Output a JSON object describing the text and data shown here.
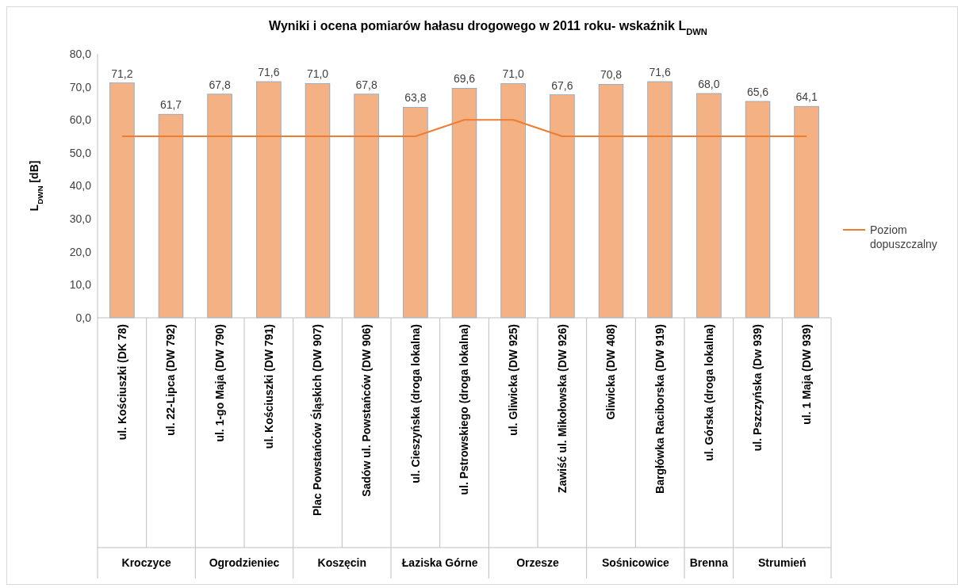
{
  "chart_data": {
    "type": "bar",
    "title": "Wyniki i ocena pomiarów hałasu drogowego w 2011 roku- wskaźnik L$_{DWN}$",
    "ylabel": "L$_{DWN}$ [dB]",
    "categories": [
      "ul. Kościuszki (DK 78)",
      "ul. 22-Lipca (DW 792)",
      "ul. 1-go Maja (DW 790)",
      "ul. Kościuszki (DW 791)",
      "Plac Powstańców Śląskich (DW 907)",
      "Sadów ul. Powstańców (DW 906)",
      "ul. Cieszyńska (droga lokalna)",
      "ul. Pstrowskiego (droga lokalna)",
      "ul. Gliwicka (DW 925)",
      "Zawiść ul. Mikołowska (DW 926)",
      "Gliwicka  (DW 408)",
      "Bargłówka Raciborska (DW 919)",
      "ul. Górska (droga lokalna)",
      "ul. Pszczyńska (Dw 939)",
      "ul. 1 Maja (DW 939)"
    ],
    "series": [
      {
        "color": "#f4b183",
        "values": [
          71.2,
          61.7,
          67.8,
          71.6,
          71.0,
          67.8,
          63.8,
          69.6,
          71.0,
          67.6,
          70.8,
          71.6,
          68.0,
          65.6,
          64.1
        ],
        "value_labels": [
          "71,2",
          "61,7",
          "67,8",
          "71,6",
          "71,0",
          "67,8",
          "63,8",
          "69,6",
          "71,0",
          "67,6",
          "70,8",
          "71,6",
          "68,0",
          "65,6",
          "64,1"
        ]
      },
      {
        "type": "line",
        "name": "Poziom dopuszczalny",
        "color": "#ed7d31",
        "values": [
          55,
          55,
          55,
          55,
          55,
          55,
          55,
          60,
          60,
          55,
          55,
          55,
          55,
          55,
          55
        ]
      }
    ],
    "ylim": [
      0,
      80
    ],
    "yticks": [
      {
        "value": 0,
        "label": "0,0"
      },
      {
        "value": 10,
        "label": "10,0"
      },
      {
        "value": 20,
        "label": "20,0"
      },
      {
        "value": 30,
        "label": "30,0"
      },
      {
        "value": 40,
        "label": "40,0"
      },
      {
        "value": 50,
        "label": "50,0"
      },
      {
        "value": 60,
        "label": "60,0"
      },
      {
        "value": 70,
        "label": "70,0"
      },
      {
        "value": 80,
        "label": "80,0"
      }
    ],
    "grid": false,
    "legend": "right",
    "annotations": [
      "Kroczyce",
      "Ogrodzieniec",
      "Koszęcin",
      "Łaziska Górne",
      "Orzesze",
      "Sośnicowice",
      "Brenna",
      "Strumień"
    ]
  }
}
